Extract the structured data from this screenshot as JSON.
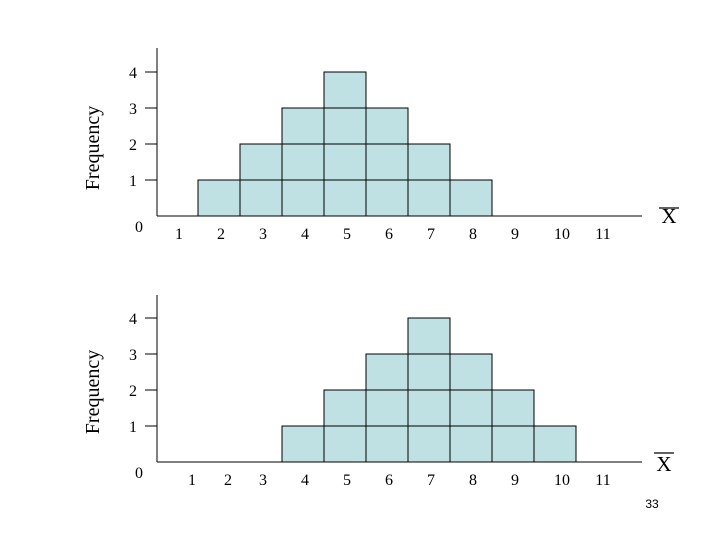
{
  "colors": {
    "block_fill": "#bfe1e3",
    "block_stroke": "#000000",
    "axis": "#000000"
  },
  "page_number": "33",
  "chart_data": [
    {
      "type": "bar",
      "ylabel": "Frequency",
      "xlabel": "X",
      "xlabel_overline": true,
      "x_ticks": [
        "1",
        "2",
        "3",
        "4",
        "5",
        "6",
        "7",
        "8",
        "9",
        "10",
        "11"
      ],
      "y_ticks": [
        "0",
        "1",
        "2",
        "3",
        "4"
      ],
      "categories": [
        2,
        3,
        4,
        5,
        6,
        7,
        8
      ],
      "values": [
        1,
        2,
        3,
        4,
        3,
        2,
        1
      ],
      "ylim": [
        0,
        4
      ],
      "xlim": [
        1,
        11
      ]
    },
    {
      "type": "bar",
      "ylabel": "Frequency",
      "xlabel": "X",
      "xlabel_overline": true,
      "x_ticks": [
        "1",
        "2",
        "3",
        "4",
        "5",
        "6",
        "7",
        "8",
        "9",
        "10",
        "11"
      ],
      "y_ticks": [
        "0",
        "1",
        "2",
        "3",
        "4"
      ],
      "categories": [
        4,
        5,
        6,
        7,
        8,
        9,
        10
      ],
      "values": [
        1,
        2,
        3,
        4,
        3,
        2,
        1
      ],
      "ylim": [
        0,
        4
      ],
      "xlim": [
        1,
        11
      ]
    }
  ]
}
